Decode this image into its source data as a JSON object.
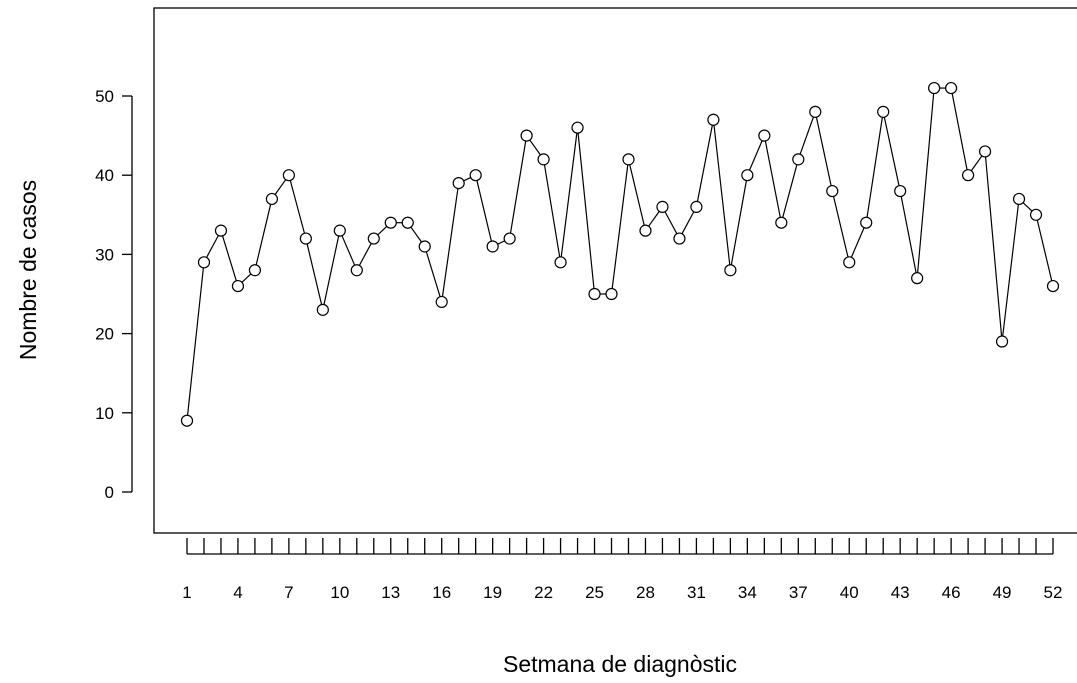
{
  "chart_data": {
    "type": "line",
    "xlabel": "Setmana de diagnòstic",
    "ylabel": "Nombre de casos",
    "x": [
      1,
      2,
      3,
      4,
      5,
      6,
      7,
      8,
      9,
      10,
      11,
      12,
      13,
      14,
      15,
      16,
      17,
      18,
      19,
      20,
      21,
      22,
      23,
      24,
      25,
      26,
      27,
      28,
      29,
      30,
      31,
      32,
      33,
      34,
      35,
      36,
      37,
      38,
      39,
      40,
      41,
      42,
      43,
      44,
      45,
      46,
      47,
      48,
      49,
      50,
      51,
      52
    ],
    "values": [
      9,
      29,
      33,
      26,
      28,
      37,
      40,
      32,
      23,
      33,
      28,
      32,
      34,
      34,
      31,
      24,
      39,
      40,
      31,
      32,
      45,
      42,
      29,
      46,
      25,
      25,
      42,
      33,
      36,
      32,
      36,
      47,
      28,
      40,
      45,
      34,
      42,
      48,
      38,
      29,
      34,
      48,
      38,
      27,
      51,
      51,
      40,
      43,
      19,
      37,
      35,
      26
    ],
    "x_tick_labels": [
      "1",
      "4",
      "7",
      "10",
      "13",
      "16",
      "19",
      "22",
      "25",
      "28",
      "31",
      "34",
      "37",
      "40",
      "43",
      "46",
      "49",
      "52"
    ],
    "y_tick_labels": [
      "0",
      "10",
      "20",
      "30",
      "40",
      "50"
    ],
    "xlim": [
      1,
      52
    ],
    "ylim": [
      0,
      50
    ],
    "markers": "open-circle",
    "grid": false,
    "legend": "none",
    "line_color": "#000000"
  }
}
